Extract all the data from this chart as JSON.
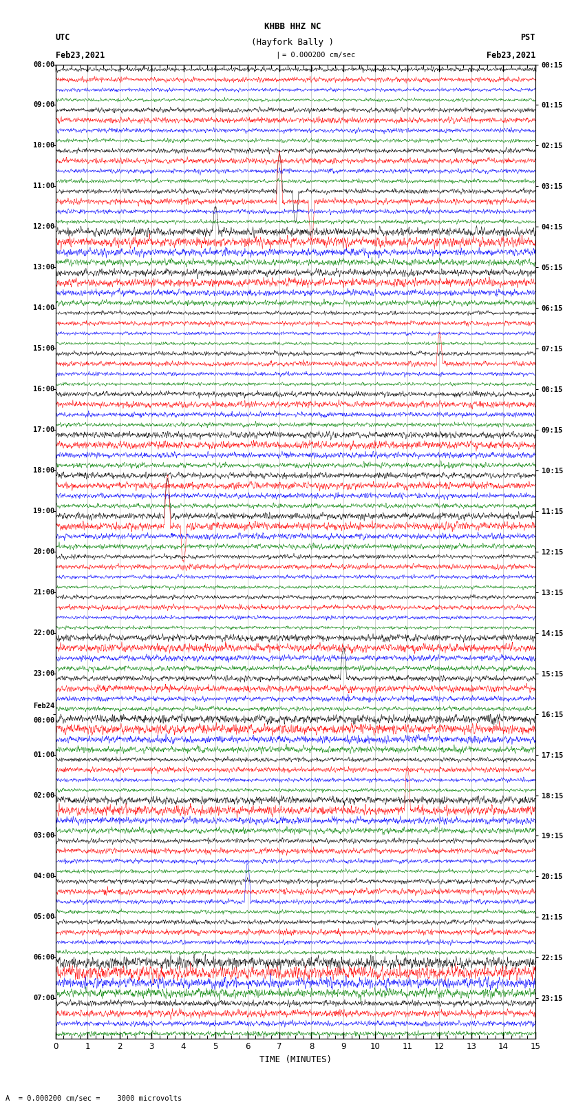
{
  "title_line1": "KHBB HHZ NC",
  "title_line2": "(Hayfork Bally )",
  "scale_label": "= 0.000200 cm/sec",
  "utc_label": "UTC",
  "utc_date": "Feb23,2021",
  "pst_label": "PST",
  "pst_date": "Feb23,2021",
  "xlabel": "TIME (MINUTES)",
  "bottom_note": "A  = 0.000200 cm/sec =    3000 microvolts",
  "xmin": 0,
  "xmax": 15,
  "left_times": [
    "08:00",
    "09:00",
    "10:00",
    "11:00",
    "12:00",
    "13:00",
    "14:00",
    "15:00",
    "16:00",
    "17:00",
    "18:00",
    "19:00",
    "20:00",
    "21:00",
    "22:00",
    "23:00",
    "00:00",
    "01:00",
    "02:00",
    "03:00",
    "04:00",
    "05:00",
    "06:00",
    "07:00"
  ],
  "left_prefix": [
    "",
    "",
    "",
    "",
    "",
    "",
    "",
    "",
    "",
    "",
    "",
    "",
    "",
    "",
    "",
    "",
    "Feb24",
    "",
    "",
    "",
    "",
    "",
    "",
    ""
  ],
  "right_times": [
    "00:15",
    "01:15",
    "02:15",
    "03:15",
    "04:15",
    "05:15",
    "06:15",
    "07:15",
    "08:15",
    "09:15",
    "10:15",
    "11:15",
    "12:15",
    "13:15",
    "14:15",
    "15:15",
    "16:15",
    "17:15",
    "18:15",
    "19:15",
    "20:15",
    "21:15",
    "22:15",
    "23:15"
  ],
  "n_groups": 24,
  "traces_per_group": 4,
  "colors": [
    "black",
    "red",
    "blue",
    "green"
  ],
  "fig_width": 8.5,
  "fig_height": 16.13,
  "bg_color": "white",
  "noise_seed": 12345,
  "base_amplitude": 0.018,
  "n_pts": 2000
}
